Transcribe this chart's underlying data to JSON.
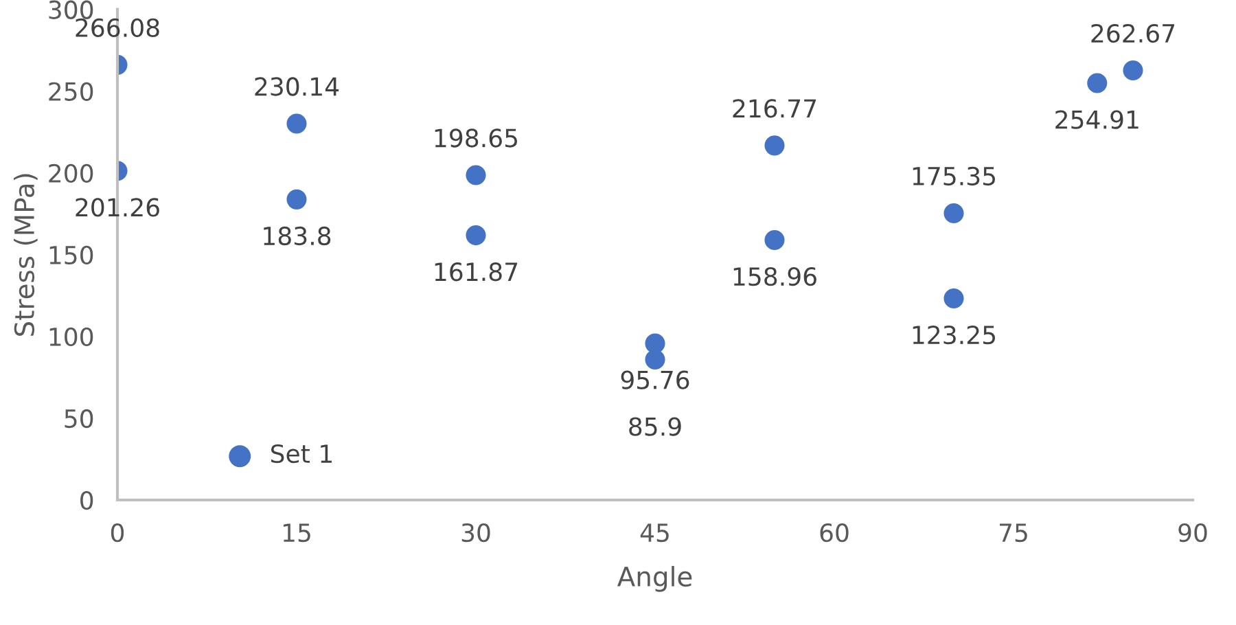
{
  "chart_data": {
    "type": "scatter",
    "xlabel": "Angle",
    "ylabel": "Stress (MPa)",
    "x": [
      0,
      0,
      15,
      15,
      30,
      30,
      45,
      45,
      55,
      55,
      70,
      70,
      82,
      85
    ],
    "series": [
      {
        "name": "Set 1",
        "color": "#4472c4",
        "values": [
          266.08,
          201.26,
          230.14,
          183.8,
          198.65,
          161.87,
          95.76,
          85.9,
          216.77,
          158.96,
          175.35,
          123.25,
          254.91,
          262.67
        ]
      }
    ],
    "xlim": [
      0,
      90
    ],
    "xticks": [
      0,
      15,
      30,
      45,
      60,
      75,
      90
    ],
    "ylim": [
      0,
      300
    ],
    "yticks": [
      0,
      50,
      100,
      150,
      200,
      250,
      300
    ],
    "data_labels": true,
    "legend": "bottom left",
    "grid": false,
    "marker": "circle"
  }
}
